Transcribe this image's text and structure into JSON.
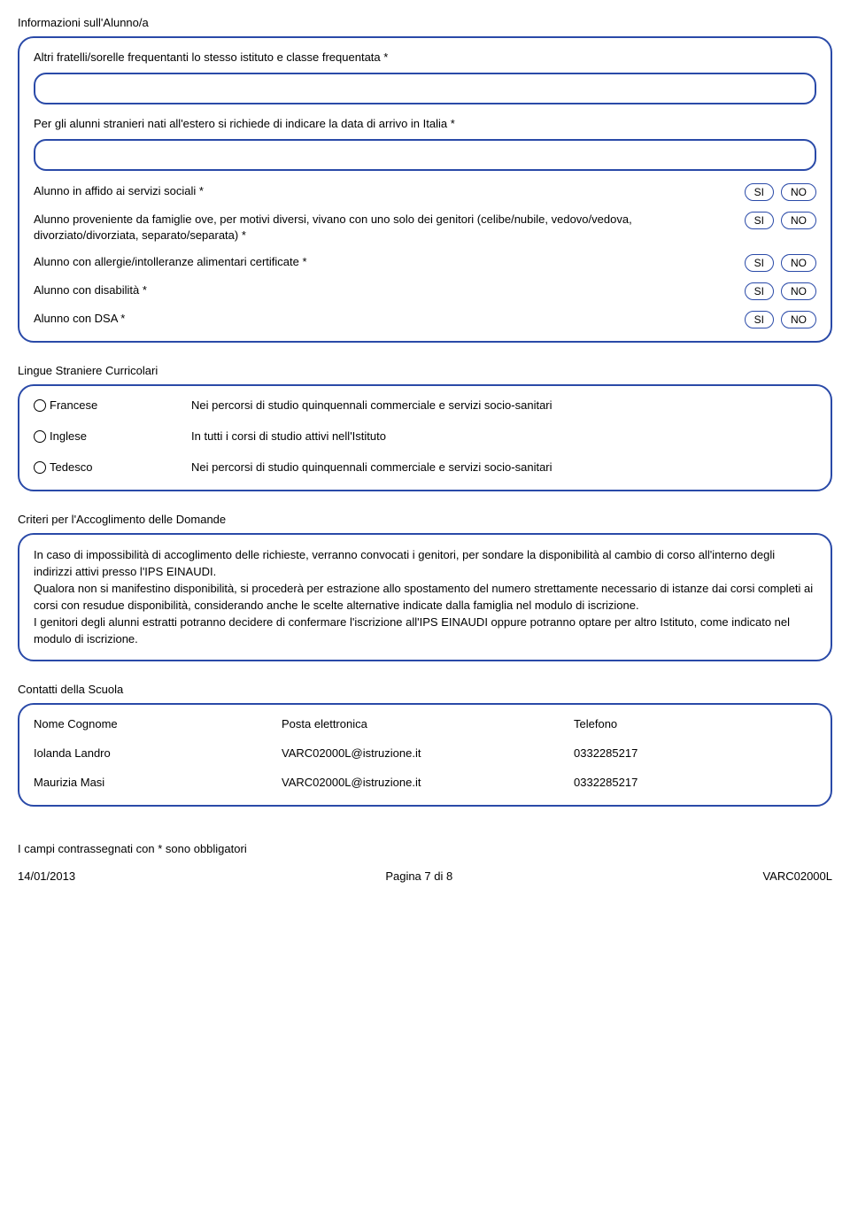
{
  "section1": {
    "title": "Informazioni sull'Alunno/a",
    "prompt_siblings": "Altri fratelli/sorelle frequentanti lo stesso istituto e classe frequentata *",
    "prompt_foreign": "Per gli alunni  stranieri nati all'estero si richiede di indicare la data di arrivo in Italia *",
    "rows": {
      "affido": "Alunno in affido ai servizi sociali *",
      "famiglie": "Alunno proveniente da famiglie ove, per motivi diversi, vivano con uno solo dei genitori (celibe/nubile, vedovo/vedova, divorziato/divorziata, separato/separata) *",
      "allergie": "Alunno con allergie/intolleranze alimentari certificate *",
      "disabilita": "Alunno con disabilità *",
      "dsa": "Alunno con DSA *"
    },
    "si": "SI",
    "no": "NO"
  },
  "section2": {
    "title": "Lingue Straniere Curricolari",
    "items": [
      {
        "name": "Francese",
        "desc": "Nei percorsi di studio quinquennali commerciale e servizi socio-sanitari"
      },
      {
        "name": "Inglese",
        "desc": "In tutti i corsi di studio attivi nell'Istituto"
      },
      {
        "name": "Tedesco",
        "desc": "Nei percorsi di studio quinquennali commerciale e servizi socio-sanitari"
      }
    ]
  },
  "section3": {
    "title": "Criteri per l'Accoglimento delle Domande",
    "para1": "In caso di impossibilità di accoglimento delle richieste, verranno convocati i genitori, per sondare la disponibilità al cambio di corso all'interno degli indirizzi attivi presso l'IPS EINAUDI.",
    "para2": "Qualora non si manifestino disponibilità, si procederà per estrazione allo spostamento del numero strettamente necessario di istanze dai corsi completi ai corsi con resudue disponibilità, considerando anche le scelte alternative indicate dalla famiglia nel modulo di iscrizione.",
    "para3": "I genitori degli alunni estratti potranno decidere di confermare l'iscrizione all'IPS EINAUDI oppure potranno optare per altro Istituto, come indicato nel modulo di iscrizione."
  },
  "section4": {
    "title": "Contatti della Scuola",
    "headers": {
      "name": "Nome Cognome",
      "email": "Posta elettronica",
      "phone": "Telefono"
    },
    "rows": [
      {
        "name": "Iolanda Landro",
        "email": "VARC02000L@istruzione.it",
        "phone": "0332285217"
      },
      {
        "name": "Maurizia Masi",
        "email": "VARC02000L@istruzione.it",
        "phone": "0332285217"
      }
    ]
  },
  "footer": {
    "note": "I campi contrassegnati con * sono obbligatori",
    "date": "14/01/2013",
    "page": "Pagina 7 di 8",
    "code": "VARC02000L"
  }
}
